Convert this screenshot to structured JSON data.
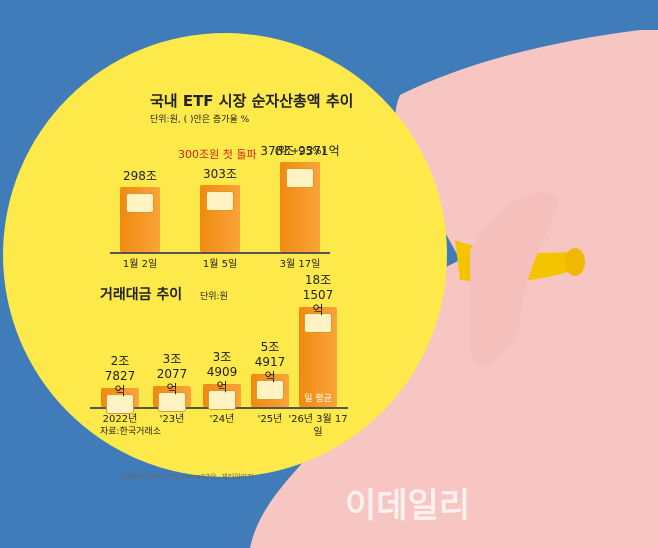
{
  "chart_data": [
    {
      "type": "bar",
      "title": "국내 ETF 시장 순자산총액 추이",
      "subtitle": "단위:원, ( )안은 증가율 %",
      "categories": [
        "1월 2일",
        "1월 5일",
        "3월 17일"
      ],
      "values": [
        298,
        303,
        378.9371
      ],
      "value_labels": [
        "298조",
        "303조",
        "378조 9371억"
      ],
      "annotations": [
        "300조원 첫 돌파",
        "(약 +25%)"
      ],
      "color": "#f7941d"
    },
    {
      "type": "bar",
      "title": "거래대금 추이",
      "subtitle": "단위:원",
      "categories": [
        "2022년",
        "'23년",
        "'24년",
        "'25년",
        "'26년 3월 17일"
      ],
      "values": [
        2.7827,
        3.2077,
        3.4909,
        5.4917,
        18.1507
      ],
      "value_labels": [
        "2조 7827억",
        "3조 2077억",
        "3조 4909억",
        "5조 4917억",
        "18조 1507억"
      ],
      "annotations": [
        "일 평균"
      ],
      "source": "자료:한국거래소",
      "color": "#f7941d"
    }
  ],
  "credit": "그래픽=이미나 기자 mesa87@, 게티이미지",
  "watermark": "이데일리"
}
